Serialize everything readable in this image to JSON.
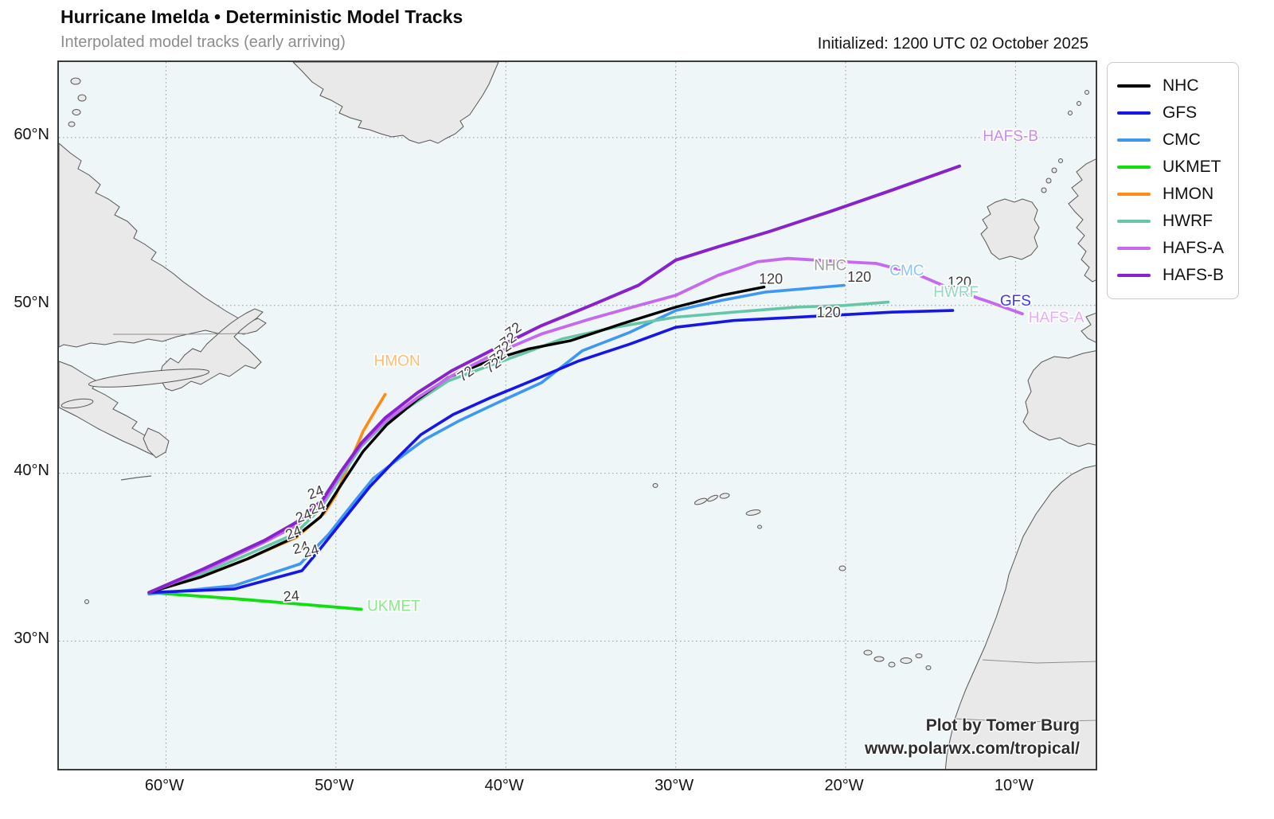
{
  "page": {
    "title": "Hurricane Imelda • Deterministic Model Tracks",
    "subtitle": "Interpolated model tracks (early arriving)",
    "initialized": "Initialized: 1200 UTC 02 October 2025"
  },
  "attribution": {
    "line1": "Plot by Tomer Burg",
    "line2": "www.polarwx.com/tropical/"
  },
  "legend": {
    "items": [
      {
        "label": "NHC",
        "color": "#000000"
      },
      {
        "label": "GFS",
        "color": "#1616e8"
      },
      {
        "label": "CMC",
        "color": "#3e97f2"
      },
      {
        "label": "UKMET",
        "color": "#0ee00e"
      },
      {
        "label": "HMON",
        "color": "#ff8c14"
      },
      {
        "label": "HWRF",
        "color": "#67c6a5"
      },
      {
        "label": "HAFS-A",
        "color": "#c469f0"
      },
      {
        "label": "HAFS-B",
        "color": "#8822cc"
      }
    ]
  },
  "axes": {
    "x_ticks": [
      {
        "label": "60°W",
        "lon": -60
      },
      {
        "label": "50°W",
        "lon": -50
      },
      {
        "label": "40°W",
        "lon": -40
      },
      {
        "label": "30°W",
        "lon": -30
      },
      {
        "label": "20°W",
        "lon": -20
      },
      {
        "label": "10°W",
        "lon": -10
      }
    ],
    "y_ticks": [
      {
        "label": "60°N",
        "lat": 60
      },
      {
        "label": "50°N",
        "lat": 50
      },
      {
        "label": "40°N",
        "lat": 40
      },
      {
        "label": "30°N",
        "lat": 30
      }
    ]
  },
  "chart_data": {
    "type": "line",
    "title": "Hurricane Imelda • Deterministic Model Tracks",
    "subtitle": "Interpolated model tracks (early arriving)",
    "initialized": "1200 UTC 02 October 2025",
    "projection": {
      "lon_min": -66.3,
      "lon_max": -5.1,
      "lat_min": 22.2,
      "lat_max": 64.5,
      "grid": "dotted 10-degree"
    },
    "tracks": [
      {
        "model": "NHC",
        "color": "#000000",
        "width": 3.4,
        "points": [
          [
            -61.0,
            32.9
          ],
          [
            -58.0,
            33.8
          ],
          [
            -55.2,
            34.9
          ],
          [
            -52.4,
            36.2
          ],
          [
            -50.9,
            37.4
          ],
          [
            -49.7,
            39.3
          ],
          [
            -48.4,
            41.3
          ],
          [
            -47.0,
            42.9
          ],
          [
            -45.2,
            44.4
          ],
          [
            -43.4,
            45.7
          ],
          [
            -41.0,
            46.7
          ],
          [
            -38.7,
            47.4
          ],
          [
            -36.2,
            47.9
          ],
          [
            -33.2,
            48.9
          ],
          [
            -30.0,
            49.9
          ],
          [
            -27.3,
            50.6
          ],
          [
            -24.8,
            51.1
          ]
        ]
      },
      {
        "model": "GFS",
        "color": "#1616e8",
        "width": 3.6,
        "points": [
          [
            -61.0,
            32.9
          ],
          [
            -56.0,
            33.1
          ],
          [
            -52.0,
            34.2
          ],
          [
            -51.0,
            35.4
          ],
          [
            -49.5,
            37.3
          ],
          [
            -48.0,
            39.2
          ],
          [
            -46.5,
            40.8
          ],
          [
            -45.0,
            42.3
          ],
          [
            -43.1,
            43.5
          ],
          [
            -40.9,
            44.5
          ],
          [
            -38.5,
            45.5
          ],
          [
            -35.7,
            46.7
          ],
          [
            -32.7,
            47.7
          ],
          [
            -30.0,
            48.7
          ],
          [
            -26.6,
            49.1
          ],
          [
            -21.0,
            49.4
          ],
          [
            -17.3,
            49.6
          ],
          [
            -13.7,
            49.7
          ]
        ]
      },
      {
        "model": "CMC",
        "color": "#3e97f2",
        "width": 3.6,
        "points": [
          [
            -61.0,
            32.8
          ],
          [
            -56.0,
            33.3
          ],
          [
            -52.1,
            34.6
          ],
          [
            -50.4,
            36.4
          ],
          [
            -49.0,
            38.2
          ],
          [
            -47.8,
            39.7
          ],
          [
            -46.4,
            40.8
          ],
          [
            -44.8,
            42.0
          ],
          [
            -42.8,
            43.1
          ],
          [
            -40.5,
            44.2
          ],
          [
            -37.9,
            45.4
          ],
          [
            -35.5,
            47.3
          ],
          [
            -32.7,
            48.4
          ],
          [
            -30.0,
            49.7
          ],
          [
            -27.3,
            50.3
          ],
          [
            -24.7,
            50.8
          ],
          [
            -20.1,
            51.2
          ]
        ]
      },
      {
        "model": "UKMET",
        "color": "#0ee00e",
        "width": 3.8,
        "points": [
          [
            -61.0,
            32.9
          ],
          [
            -55.6,
            32.5
          ],
          [
            -48.5,
            31.9
          ]
        ]
      },
      {
        "model": "HMON",
        "color": "#ff8c14",
        "width": 3.6,
        "points": [
          [
            -61.0,
            32.9
          ],
          [
            -58.0,
            33.8
          ],
          [
            -55.2,
            34.9
          ],
          [
            -52.3,
            36.2
          ],
          [
            -50.7,
            37.6
          ],
          [
            -50.0,
            38.7
          ],
          [
            -49.2,
            40.6
          ],
          [
            -48.4,
            42.5
          ],
          [
            -47.7,
            43.7
          ],
          [
            -47.1,
            44.7
          ]
        ]
      },
      {
        "model": "HWRF",
        "color": "#67c6a5",
        "width": 3.6,
        "points": [
          [
            -61.0,
            32.9
          ],
          [
            -57.9,
            34.0
          ],
          [
            -55.1,
            35.2
          ],
          [
            -52.4,
            36.4
          ],
          [
            -50.9,
            37.9
          ],
          [
            -49.7,
            39.8
          ],
          [
            -48.5,
            41.6
          ],
          [
            -47.1,
            43.0
          ],
          [
            -45.2,
            44.3
          ],
          [
            -43.4,
            45.5
          ],
          [
            -41.0,
            46.4
          ],
          [
            -38.8,
            47.2
          ],
          [
            -36.7,
            48.0
          ],
          [
            -33.6,
            48.7
          ],
          [
            -30.0,
            49.3
          ],
          [
            -26.6,
            49.6
          ],
          [
            -22.9,
            49.9
          ],
          [
            -20.1,
            50.0
          ],
          [
            -17.5,
            50.2
          ]
        ]
      },
      {
        "model": "HAFS-A",
        "color": "#c469f0",
        "width": 3.8,
        "points": [
          [
            -61.0,
            32.9
          ],
          [
            -57.8,
            34.2
          ],
          [
            -54.2,
            35.9
          ],
          [
            -52.3,
            36.9
          ],
          [
            -50.8,
            38.2
          ],
          [
            -49.7,
            40.0
          ],
          [
            -48.5,
            41.7
          ],
          [
            -47.1,
            43.1
          ],
          [
            -45.2,
            44.5
          ],
          [
            -43.2,
            45.8
          ],
          [
            -40.7,
            47.1
          ],
          [
            -37.9,
            48.3
          ],
          [
            -35.0,
            49.2
          ],
          [
            -32.2,
            50.0
          ],
          [
            -30.0,
            50.6
          ],
          [
            -27.5,
            51.8
          ],
          [
            -25.2,
            52.6
          ],
          [
            -23.4,
            52.8
          ],
          [
            -20.1,
            52.6
          ],
          [
            -18.2,
            52.5
          ],
          [
            -15.9,
            51.9
          ],
          [
            -13.6,
            50.9
          ],
          [
            -11.5,
            50.2
          ],
          [
            -9.6,
            49.5
          ]
        ]
      },
      {
        "model": "HAFS-B",
        "color": "#8822cc",
        "width": 4.0,
        "points": [
          [
            -61.0,
            32.9
          ],
          [
            -57.8,
            34.3
          ],
          [
            -54.2,
            36.0
          ],
          [
            -52.3,
            37.1
          ],
          [
            -50.8,
            38.4
          ],
          [
            -49.7,
            40.1
          ],
          [
            -48.5,
            41.8
          ],
          [
            -47.1,
            43.3
          ],
          [
            -45.2,
            44.8
          ],
          [
            -43.2,
            46.1
          ],
          [
            -40.7,
            47.4
          ],
          [
            -37.9,
            48.8
          ],
          [
            -35.0,
            50.0
          ],
          [
            -32.2,
            51.2
          ],
          [
            -30.0,
            52.7
          ],
          [
            -27.5,
            53.5
          ],
          [
            -24.5,
            54.4
          ],
          [
            -20.9,
            55.6
          ],
          [
            -17.2,
            56.9
          ],
          [
            -13.3,
            58.3
          ]
        ]
      }
    ],
    "hour_labels": [
      {
        "text": "24",
        "lon": -51.1,
        "lat": 38.6,
        "rot": -20
      },
      {
        "text": "24",
        "lon": -51.0,
        "lat": 37.7,
        "rot": -20
      },
      {
        "text": "24",
        "lon": -51.8,
        "lat": 37.2,
        "rot": -20
      },
      {
        "text": "24",
        "lon": -52.4,
        "lat": 36.2,
        "rot": -20
      },
      {
        "text": "24",
        "lon": -52.0,
        "lat": 35.3,
        "rot": -15
      },
      {
        "text": "24",
        "lon": -51.4,
        "lat": 35.1,
        "rot": -15
      },
      {
        "text": "24",
        "lon": -52.6,
        "lat": 32.4,
        "rot": -5
      },
      {
        "text": "72",
        "lon": -39.4,
        "lat": 48.3,
        "rot": -35
      },
      {
        "text": "72",
        "lon": -39.7,
        "lat": 47.7,
        "rot": -35
      },
      {
        "text": "72",
        "lon": -40.0,
        "lat": 47.2,
        "rot": -35
      },
      {
        "text": "72",
        "lon": -40.3,
        "lat": 46.7,
        "rot": -35
      },
      {
        "text": "72",
        "lon": -40.6,
        "lat": 46.2,
        "rot": -35
      },
      {
        "text": "72",
        "lon": -42.2,
        "lat": 45.7,
        "rot": -35
      },
      {
        "text": "120",
        "lon": -24.4,
        "lat": 51.3,
        "rot": 0
      },
      {
        "text": "120",
        "lon": -19.2,
        "lat": 51.4,
        "rot": 0
      },
      {
        "text": "120",
        "lon": -21.0,
        "lat": 49.3,
        "rot": 0
      },
      {
        "text": "120",
        "lon": -13.3,
        "lat": 51.1,
        "rot": 0
      }
    ],
    "model_labels": [
      {
        "text": "NHC",
        "lon": -20.9,
        "lat": 52.1,
        "color": "#9b9b9b"
      },
      {
        "text": "CMC",
        "lon": -16.4,
        "lat": 51.8,
        "color": "#8cc4f8"
      },
      {
        "text": "HWRF",
        "lon": -13.5,
        "lat": 50.5,
        "color": "#93d8bf"
      },
      {
        "text": "GFS",
        "lon": -10.0,
        "lat": 50.0,
        "color": "#3a3af0"
      },
      {
        "text": "HAFS-A",
        "lon": -7.6,
        "lat": 49.0,
        "color": "#e2aef8"
      },
      {
        "text": "HAFS-B",
        "lon": -10.3,
        "lat": 59.8,
        "color": "#c98be8"
      },
      {
        "text": "HMON",
        "lon": -46.4,
        "lat": 46.4,
        "color": "#ffbc74"
      },
      {
        "text": "UKMET",
        "lon": -46.6,
        "lat": 31.8,
        "color": "#86ea86"
      }
    ]
  }
}
